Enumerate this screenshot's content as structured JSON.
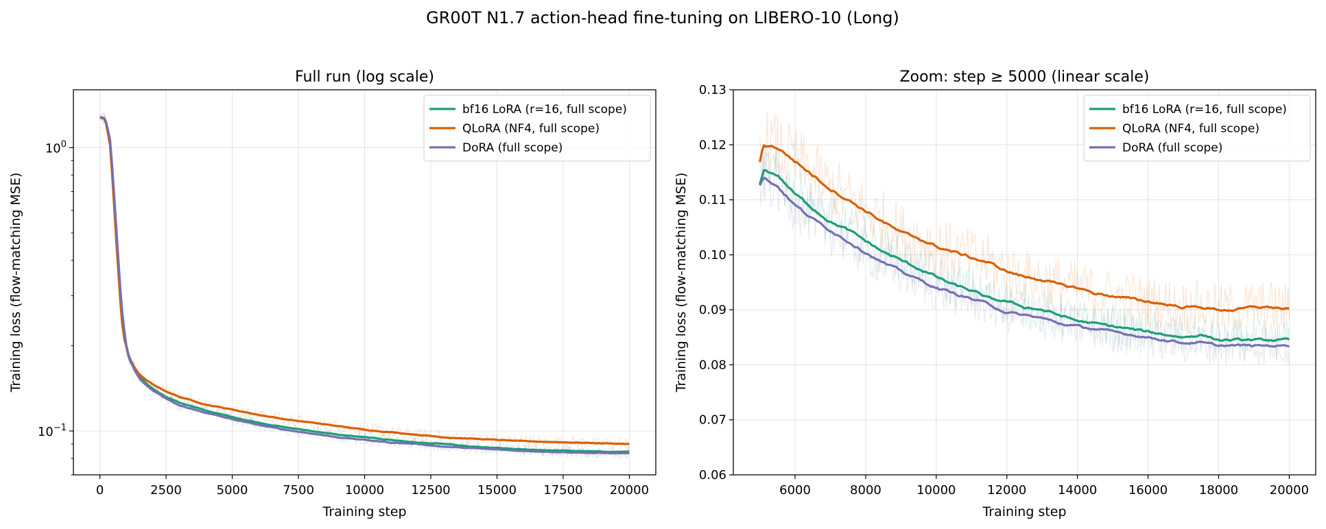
{
  "figure_title": "GR00T N1.7 action-head fine-tuning on LIBERO-10 (Long)",
  "colors": {
    "bf16_lora": "#1b9e77",
    "qlora": "#d95f02",
    "dora": "#7570b3"
  },
  "chart_data": [
    {
      "type": "line",
      "title": "Full run (log scale)",
      "xlabel": "Training step",
      "ylabel": "Training loss (flow-matching MSE)",
      "xscale": "linear",
      "yscale": "log",
      "xlim": [
        -1000,
        21000
      ],
      "ylim": [
        0.07,
        1.6
      ],
      "xticks": [
        0,
        2500,
        5000,
        7500,
        10000,
        12500,
        15000,
        17500,
        20000
      ],
      "xtick_labels": [
        "0",
        "2500",
        "5000",
        "7500",
        "10000",
        "12500",
        "15000",
        "17500",
        "20000"
      ],
      "yticks": [
        1.0,
        0.1
      ],
      "ytick_labels": [
        "10^0",
        "10^-1"
      ],
      "grid": true,
      "legend_position": "upper right",
      "series": [
        {
          "name": "bf16 LoRA (r=16, full scope)",
          "color": "#1b9e77",
          "x": [
            0,
            200,
            400,
            600,
            800,
            900,
            1000,
            1100,
            1300,
            1500,
            1750,
            2000,
            2500,
            3000,
            4000,
            5000,
            6000,
            7000,
            8000,
            9000,
            10000,
            11000,
            12000,
            13000,
            14000,
            15000,
            16000,
            17000,
            18000,
            19000,
            20000
          ],
          "y": [
            1.28,
            1.27,
            1.05,
            0.55,
            0.28,
            0.23,
            0.198,
            0.18,
            0.165,
            0.155,
            0.147,
            0.141,
            0.132,
            0.126,
            0.118,
            0.112,
            0.107,
            0.103,
            0.1,
            0.097,
            0.095,
            0.093,
            0.091,
            0.09,
            0.088,
            0.087,
            0.086,
            0.0855,
            0.085,
            0.0845,
            0.0845
          ]
        },
        {
          "name": "QLoRA (NF4, full scope)",
          "color": "#d95f02",
          "x": [
            0,
            200,
            400,
            600,
            800,
            900,
            1000,
            1100,
            1300,
            1500,
            1750,
            2000,
            2500,
            3000,
            4000,
            5000,
            6000,
            7000,
            8000,
            9000,
            10000,
            11000,
            12000,
            13000,
            14000,
            15000,
            16000,
            17000,
            18000,
            19000,
            20000
          ],
          "y": [
            1.28,
            1.26,
            1.0,
            0.5,
            0.26,
            0.215,
            0.198,
            0.183,
            0.168,
            0.158,
            0.151,
            0.146,
            0.138,
            0.132,
            0.124,
            0.119,
            0.114,
            0.11,
            0.107,
            0.104,
            0.101,
            0.099,
            0.097,
            0.095,
            0.094,
            0.093,
            0.092,
            0.0915,
            0.091,
            0.0905,
            0.09
          ]
        },
        {
          "name": "DoRA (full scope)",
          "color": "#7570b3",
          "x": [
            0,
            200,
            400,
            600,
            800,
            900,
            1000,
            1100,
            1300,
            1500,
            1750,
            2000,
            2500,
            3000,
            4000,
            5000,
            6000,
            7000,
            8000,
            9000,
            10000,
            11000,
            12000,
            13000,
            14000,
            15000,
            16000,
            17000,
            18000,
            19000,
            20000
          ],
          "y": [
            1.28,
            1.27,
            1.05,
            0.56,
            0.29,
            0.235,
            0.2,
            0.182,
            0.164,
            0.153,
            0.145,
            0.139,
            0.13,
            0.123,
            0.116,
            0.11,
            0.105,
            0.101,
            0.098,
            0.095,
            0.093,
            0.091,
            0.09,
            0.088,
            0.087,
            0.086,
            0.085,
            0.0845,
            0.084,
            0.0835,
            0.0835
          ]
        }
      ]
    },
    {
      "type": "line",
      "title": "Zoom: step ≥ 5000 (linear scale)",
      "xlabel": "Training step",
      "ylabel": "Training loss (flow-matching MSE)",
      "xscale": "linear",
      "yscale": "linear",
      "xlim": [
        4250,
        20750
      ],
      "ylim": [
        0.06,
        0.13
      ],
      "xticks": [
        6000,
        8000,
        10000,
        12000,
        14000,
        16000,
        18000,
        20000
      ],
      "xtick_labels": [
        "6000",
        "8000",
        "10000",
        "12000",
        "14000",
        "16000",
        "18000",
        "20000"
      ],
      "yticks": [
        0.06,
        0.07,
        0.08,
        0.09,
        0.1,
        0.11,
        0.12,
        0.13
      ],
      "ytick_labels": [
        "0.06",
        "0.07",
        "0.08",
        "0.09",
        "0.10",
        "0.11",
        "0.12",
        "0.13"
      ],
      "grid": true,
      "legend_position": "upper right",
      "series": [
        {
          "name": "bf16 LoRA (r=16, full scope)",
          "color": "#1b9e77",
          "x": [
            5000,
            5100,
            5500,
            6000,
            6500,
            7000,
            7500,
            8000,
            8500,
            9000,
            9500,
            10000,
            10500,
            11000,
            11500,
            12000,
            12500,
            13000,
            13500,
            14000,
            14500,
            15000,
            15500,
            16000,
            16500,
            17000,
            17500,
            18000,
            18500,
            19000,
            19500,
            20000
          ],
          "y": [
            0.113,
            0.1155,
            0.1145,
            0.111,
            0.1085,
            0.106,
            0.1045,
            0.1025,
            0.1005,
            0.099,
            0.0975,
            0.096,
            0.0945,
            0.0935,
            0.092,
            0.0915,
            0.0905,
            0.09,
            0.089,
            0.088,
            0.0875,
            0.087,
            0.0865,
            0.086,
            0.0855,
            0.085,
            0.0855,
            0.0845,
            0.0845,
            0.0845,
            0.0845,
            0.0845
          ]
        },
        {
          "name": "QLoRA (NF4, full scope)",
          "color": "#d95f02",
          "x": [
            5000,
            5100,
            5500,
            6000,
            6500,
            7000,
            7500,
            8000,
            8500,
            9000,
            9500,
            10000,
            10500,
            11000,
            11500,
            12000,
            12500,
            13000,
            13500,
            14000,
            14500,
            15000,
            15500,
            16000,
            16500,
            17000,
            17500,
            18000,
            18500,
            19000,
            19500,
            20000
          ],
          "y": [
            0.117,
            0.12,
            0.1195,
            0.117,
            0.1145,
            0.112,
            0.11,
            0.108,
            0.106,
            0.104,
            0.103,
            0.1015,
            0.1005,
            0.0995,
            0.0985,
            0.097,
            0.096,
            0.0955,
            0.0945,
            0.094,
            0.093,
            0.0925,
            0.092,
            0.0915,
            0.091,
            0.0905,
            0.0905,
            0.09,
            0.09,
            0.0905,
            0.0905,
            0.09
          ]
        },
        {
          "name": "DoRA (full scope)",
          "color": "#7570b3",
          "x": [
            5000,
            5100,
            5500,
            6000,
            6500,
            7000,
            7500,
            8000,
            8500,
            9000,
            9500,
            10000,
            10500,
            11000,
            11500,
            12000,
            12500,
            13000,
            13500,
            14000,
            14500,
            15000,
            15500,
            16000,
            16500,
            17000,
            17500,
            18000,
            18500,
            19000,
            19500,
            20000
          ],
          "y": [
            0.1125,
            0.114,
            0.1125,
            0.109,
            0.1065,
            0.1045,
            0.1025,
            0.1005,
            0.0985,
            0.097,
            0.0955,
            0.094,
            0.093,
            0.092,
            0.091,
            0.0895,
            0.089,
            0.0885,
            0.0875,
            0.087,
            0.0865,
            0.086,
            0.0855,
            0.085,
            0.0845,
            0.084,
            0.084,
            0.0835,
            0.0835,
            0.0835,
            0.0835,
            0.0835
          ]
        }
      ]
    }
  ]
}
